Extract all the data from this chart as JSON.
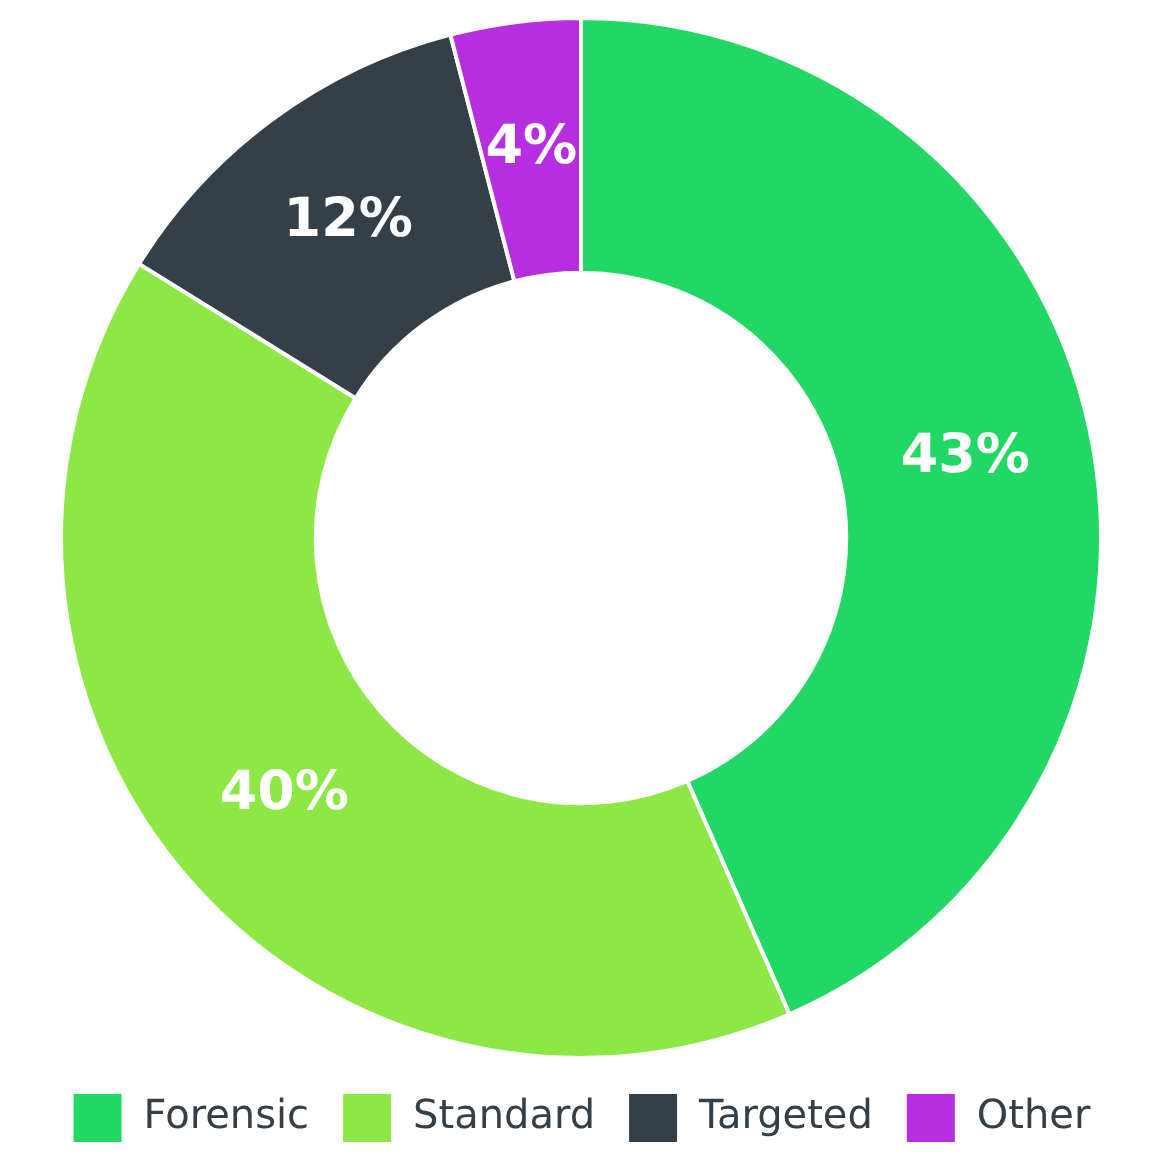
{
  "chart_data": {
    "type": "donut",
    "categories": [
      "Forensic",
      "Standard",
      "Targeted",
      "Other"
    ],
    "values": [
      43,
      40,
      12,
      4
    ],
    "colors": [
      "#22d864",
      "#8de846",
      "#343f48",
      "#b62ee0"
    ],
    "value_labels": [
      "43%",
      "40%",
      "12%",
      "4%"
    ],
    "legend": "bottom"
  }
}
